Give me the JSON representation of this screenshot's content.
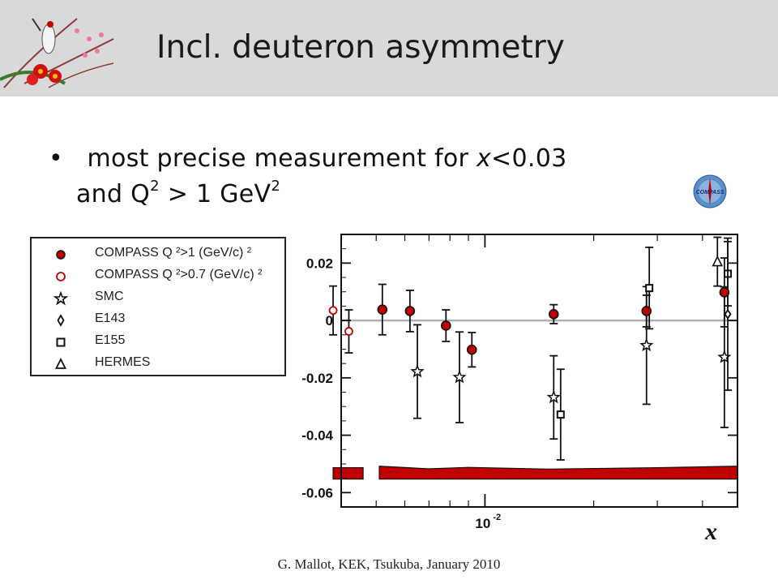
{
  "slide": {
    "title": "Incl. deuteron asymmetry",
    "bullet_line1_prefix": "most precise measurement for ",
    "bullet_line1_var": "x",
    "bullet_line1_suffix": "<0.03",
    "bullet_line2_prefix": "and Q",
    "bullet_line2_sup1": "2",
    "bullet_line2_mid": " > 1 GeV",
    "bullet_line2_sup2": "2",
    "bullet_symbol": "•",
    "compass_logo_text": "COMPASS",
    "footer": "G. Mallot, KEK, Tsukuba, January 2010"
  },
  "legend": {
    "items": [
      {
        "label": "COMPASS Q ²>1 (GeV/c) ²",
        "symbol": "filled-circle",
        "color": "#c00000"
      },
      {
        "label": "COMPASS Q ²>0.7 (GeV/c) ²",
        "symbol": "open-circle",
        "color": "#c00000"
      },
      {
        "label": "SMC",
        "symbol": "star",
        "color": "#111111"
      },
      {
        "label": "E143",
        "symbol": "diamond",
        "color": "#111111"
      },
      {
        "label": "E155",
        "symbol": "open-square",
        "color": "#111111"
      },
      {
        "label": "HERMES",
        "symbol": "open-triangle",
        "color": "#111111"
      }
    ]
  },
  "colors": {
    "compass_red": "#c00000",
    "band_red": "#c00000",
    "zero_line": "#b0b0b0",
    "header_bg": "#d9d9d9"
  },
  "chart_data": {
    "type": "scatter",
    "xscale": "log",
    "xlabel": "x",
    "ylabel": "",
    "xlim": [
      0.004,
      0.05
    ],
    "ylim": [
      -0.065,
      0.03
    ],
    "x_tick_label": "10",
    "x_tick_label_exp": "-2",
    "y_ticks": [
      0.02,
      0,
      -0.02,
      -0.04,
      -0.06
    ],
    "y_tick_labels": [
      "0.02",
      "0",
      "-0.02",
      "-0.04",
      "-0.06"
    ],
    "zero_line": true,
    "series": [
      {
        "name": "COMPASS Q ²>1 (GeV/c) ²",
        "marker": "filled-circle",
        "x": [
          0.0052,
          0.0062,
          0.0078,
          0.0092,
          0.0155,
          0.028,
          0.046
        ],
        "y": [
          0.0038,
          0.0033,
          -0.0018,
          -0.0102,
          0.0022,
          0.0033,
          0.0098
        ],
        "err": [
          0.0088,
          0.0072,
          0.0055,
          0.006,
          0.0033,
          0.0055,
          0.012
        ]
      },
      {
        "name": "COMPASS Q ²>0.7 (GeV/c) ²",
        "marker": "open-circle",
        "x": [
          0.0038,
          0.0042
        ],
        "y": [
          0.0035,
          -0.0038
        ],
        "err": [
          0.0085,
          0.0075
        ]
      },
      {
        "name": "SMC",
        "marker": "star",
        "x": [
          0.0065,
          0.0085,
          0.0155,
          0.028,
          0.046
        ],
        "y": [
          -0.0178,
          -0.0198,
          -0.0268,
          -0.0087,
          -0.0128
        ],
        "err": [
          0.0163,
          0.0158,
          0.0145,
          0.0205,
          0.0245
        ]
      },
      {
        "name": "E155",
        "marker": "open-square",
        "x": [
          0.0162,
          0.0285,
          0.047
        ],
        "y": [
          -0.0328,
          0.0113,
          0.0163
        ],
        "err": [
          0.0158,
          0.0142,
          0.0112
        ]
      },
      {
        "name": "HERMES",
        "marker": "open-triangle",
        "x": [
          0.044
        ],
        "y": [
          0.0205
        ],
        "err": [
          0.0085
        ]
      },
      {
        "name": "E143",
        "marker": "diamond",
        "x": [
          0.047
        ],
        "y": [
          0.0022
        ],
        "err": [
          0.0265
        ]
      }
    ],
    "systematic_band": {
      "segments": [
        {
          "x": [
            0.0038,
            0.0046
          ],
          "bottom": [
            -0.0553,
            -0.0553
          ],
          "top": [
            -0.0513,
            -0.0513
          ]
        },
        {
          "x": [
            0.0051,
            0.007,
            0.009,
            0.015,
            0.03,
            0.05
          ],
          "bottom": [
            -0.0553,
            -0.0553,
            -0.0553,
            -0.0553,
            -0.0553,
            -0.0553
          ],
          "top": [
            -0.0508,
            -0.0517,
            -0.0512,
            -0.0518,
            -0.0513,
            -0.0508
          ]
        }
      ]
    }
  }
}
